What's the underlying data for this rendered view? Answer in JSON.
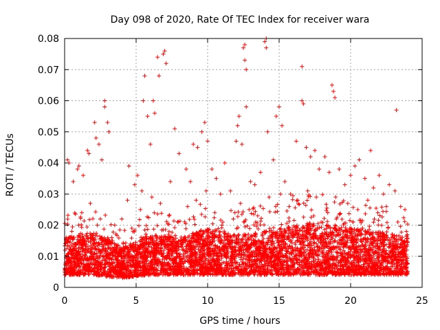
{
  "chart_data": {
    "type": "scatter",
    "title": "Day 098 of 2020, Rate Of TEC Index for receiver wara",
    "xlabel": "GPS time / hours",
    "ylabel": "ROTI / TECUs",
    "xlim": [
      0,
      25
    ],
    "ylim": [
      0,
      0.08
    ],
    "xticks": [
      0,
      5,
      10,
      15,
      20,
      25
    ],
    "xtick_labels": [
      "0",
      "5",
      "10",
      "15",
      "20",
      "25"
    ],
    "yticks": [
      0,
      0.01,
      0.02,
      0.03,
      0.04,
      0.05,
      0.06,
      0.07,
      0.08
    ],
    "ytick_labels": [
      "0",
      "0.01",
      "0.02",
      "0.03",
      "0.04",
      "0.05",
      "0.06",
      "0.07",
      "0.08"
    ],
    "grid": true,
    "marker": "+",
    "color": "#ff0000",
    "series": [
      {
        "name": "ROTI",
        "points": [
          [
            0.2,
            0.041
          ],
          [
            0.3,
            0.04
          ],
          [
            0.6,
            0.034
          ],
          [
            0.9,
            0.038
          ],
          [
            1.0,
            0.039
          ],
          [
            1.3,
            0.036
          ],
          [
            1.6,
            0.044
          ],
          [
            1.7,
            0.043
          ],
          [
            2.1,
            0.053
          ],
          [
            2.2,
            0.048
          ],
          [
            2.4,
            0.046
          ],
          [
            2.6,
            0.041
          ],
          [
            2.8,
            0.06
          ],
          [
            2.8,
            0.058
          ],
          [
            3.0,
            0.053
          ],
          [
            3.1,
            0.05
          ],
          [
            3.5,
            0.02
          ],
          [
            4.0,
            0.022
          ],
          [
            4.4,
            0.028
          ],
          [
            4.5,
            0.039
          ],
          [
            4.9,
            0.033
          ],
          [
            5.1,
            0.036
          ],
          [
            5.4,
            0.031
          ],
          [
            5.5,
            0.06
          ],
          [
            5.6,
            0.068
          ],
          [
            5.8,
            0.055
          ],
          [
            6.0,
            0.046
          ],
          [
            6.2,
            0.06
          ],
          [
            6.3,
            0.056
          ],
          [
            6.5,
            0.074
          ],
          [
            6.6,
            0.068
          ],
          [
            6.9,
            0.075
          ],
          [
            7.0,
            0.076
          ],
          [
            7.1,
            0.072
          ],
          [
            7.4,
            0.034
          ],
          [
            7.7,
            0.051
          ],
          [
            8.0,
            0.043
          ],
          [
            8.5,
            0.038
          ],
          [
            8.8,
            0.034
          ],
          [
            9.0,
            0.046
          ],
          [
            9.3,
            0.045
          ],
          [
            9.6,
            0.05
          ],
          [
            9.8,
            0.053
          ],
          [
            10.0,
            0.047
          ],
          [
            10.3,
            0.038
          ],
          [
            10.6,
            0.035
          ],
          [
            10.9,
            0.03
          ],
          [
            11.2,
            0.04
          ],
          [
            11.6,
            0.031
          ],
          [
            12.0,
            0.047
          ],
          [
            12.1,
            0.052
          ],
          [
            12.2,
            0.055
          ],
          [
            12.4,
            0.046
          ],
          [
            12.5,
            0.077
          ],
          [
            12.6,
            0.078
          ],
          [
            12.6,
            0.073
          ],
          [
            12.7,
            0.07
          ],
          [
            12.7,
            0.058
          ],
          [
            13.0,
            0.034
          ],
          [
            13.3,
            0.033
          ],
          [
            13.7,
            0.037
          ],
          [
            14.0,
            0.079
          ],
          [
            14.1,
            0.08
          ],
          [
            14.1,
            0.077
          ],
          [
            14.2,
            0.05
          ],
          [
            14.6,
            0.041
          ],
          [
            14.8,
            0.055
          ],
          [
            15.0,
            0.058
          ],
          [
            15.2,
            0.052
          ],
          [
            15.4,
            0.034
          ],
          [
            15.8,
            0.03
          ],
          [
            16.2,
            0.047
          ],
          [
            16.6,
            0.071
          ],
          [
            16.6,
            0.06
          ],
          [
            16.7,
            0.059
          ],
          [
            16.9,
            0.045
          ],
          [
            17.2,
            0.042
          ],
          [
            17.5,
            0.044
          ],
          [
            17.8,
            0.038
          ],
          [
            18.2,
            0.042
          ],
          [
            18.5,
            0.037
          ],
          [
            18.7,
            0.065
          ],
          [
            18.8,
            0.063
          ],
          [
            18.9,
            0.061
          ],
          [
            19.2,
            0.038
          ],
          [
            19.6,
            0.033
          ],
          [
            20.0,
            0.036
          ],
          [
            20.3,
            0.039
          ],
          [
            20.6,
            0.041
          ],
          [
            21.0,
            0.035
          ],
          [
            21.4,
            0.044
          ],
          [
            21.6,
            0.032
          ],
          [
            22.0,
            0.036
          ],
          [
            22.3,
            0.03
          ],
          [
            22.7,
            0.033
          ],
          [
            23.1,
            0.031
          ],
          [
            23.2,
            0.057
          ],
          [
            23.5,
            0.026
          ],
          [
            23.8,
            0.025
          ],
          [
            0.5,
            0.018
          ],
          [
            1.2,
            0.024
          ],
          [
            1.8,
            0.027
          ],
          [
            2.5,
            0.022
          ],
          [
            3.3,
            0.016
          ],
          [
            4.1,
            0.014
          ],
          [
            4.7,
            0.019
          ],
          [
            5.3,
            0.025
          ],
          [
            6.1,
            0.029
          ],
          [
            6.7,
            0.027
          ],
          [
            7.3,
            0.023
          ],
          [
            7.9,
            0.021
          ],
          [
            8.6,
            0.026
          ],
          [
            9.2,
            0.028
          ],
          [
            9.9,
            0.031
          ],
          [
            10.5,
            0.024
          ],
          [
            11.0,
            0.02
          ],
          [
            11.8,
            0.022
          ],
          [
            12.3,
            0.027
          ],
          [
            12.9,
            0.025
          ],
          [
            13.5,
            0.023
          ],
          [
            14.3,
            0.029
          ],
          [
            15.1,
            0.03
          ],
          [
            15.7,
            0.026
          ],
          [
            16.3,
            0.028
          ],
          [
            17.0,
            0.031
          ],
          [
            17.6,
            0.029
          ],
          [
            18.4,
            0.024
          ],
          [
            19.0,
            0.022
          ],
          [
            19.8,
            0.027
          ],
          [
            20.5,
            0.025
          ],
          [
            21.2,
            0.028
          ],
          [
            21.9,
            0.024
          ],
          [
            22.5,
            0.026
          ],
          [
            23.3,
            0.021
          ],
          [
            23.9,
            0.018
          ]
        ],
        "dense_band": [
          [
            0,
            0.004,
            0.016
          ],
          [
            2,
            0.004,
            0.018
          ],
          [
            4,
            0.003,
            0.013
          ],
          [
            6,
            0.004,
            0.017
          ],
          [
            8,
            0.004,
            0.016
          ],
          [
            10,
            0.004,
            0.019
          ],
          [
            12,
            0.004,
            0.017
          ],
          [
            14,
            0.004,
            0.018
          ],
          [
            16,
            0.004,
            0.02
          ],
          [
            18,
            0.004,
            0.021
          ],
          [
            20,
            0.004,
            0.019
          ],
          [
            22,
            0.004,
            0.018
          ],
          [
            24,
            0.004,
            0.016
          ]
        ]
      }
    ]
  }
}
